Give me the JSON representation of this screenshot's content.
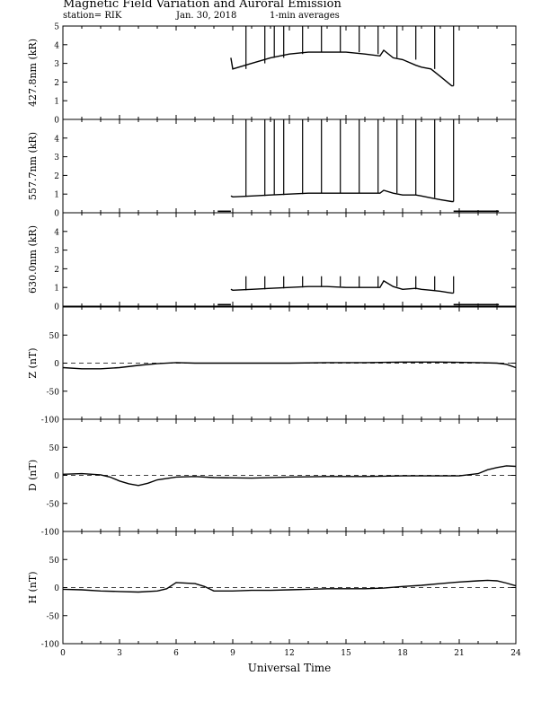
{
  "header": {
    "title": "Magnetic Field Variation and Auroral Emission",
    "station": "station= RIK",
    "date": "Jan. 30, 2018",
    "averaging": "1-min averages"
  },
  "colors": {
    "ink": "#000000",
    "background": "#ffffff"
  },
  "chart_data": [
    {
      "type": "line",
      "ylabel": "427.8nm (kR)",
      "ylim": [
        0,
        5
      ],
      "yticks": [
        0,
        1,
        2,
        3,
        4,
        5
      ],
      "xlim": [
        0,
        24
      ],
      "grid": false,
      "x": [
        8.9,
        9.0,
        10,
        11,
        12,
        13,
        14,
        15,
        16,
        16.8,
        17.0,
        17.5,
        18,
        18.7,
        19,
        19.5,
        20,
        20.6,
        20.7
      ],
      "values": [
        3.3,
        2.7,
        3.0,
        3.3,
        3.5,
        3.6,
        3.6,
        3.6,
        3.5,
        3.4,
        3.7,
        3.3,
        3.2,
        2.9,
        2.8,
        2.7,
        2.3,
        1.8,
        1.8
      ],
      "spikes": [
        {
          "x": 9.7,
          "y": 5.0
        },
        {
          "x": 10.7,
          "y": 5.0
        },
        {
          "x": 11.2,
          "y": 5.0
        },
        {
          "x": 11.7,
          "y": 5.0
        },
        {
          "x": 12.7,
          "y": 5.0
        },
        {
          "x": 13.7,
          "y": 5.0
        },
        {
          "x": 14.7,
          "y": 5.0
        },
        {
          "x": 15.7,
          "y": 5.0
        },
        {
          "x": 16.7,
          "y": 5.0
        },
        {
          "x": 17.7,
          "y": 5.0
        },
        {
          "x": 18.7,
          "y": 5.0
        },
        {
          "x": 19.7,
          "y": 5.0
        },
        {
          "x": 20.7,
          "y": 5.0
        }
      ]
    },
    {
      "type": "line",
      "ylabel": "557.7nm (kR)",
      "ylim": [
        0,
        5
      ],
      "yticks": [
        0,
        1,
        2,
        3,
        4
      ],
      "xlim": [
        0,
        24
      ],
      "grid": false,
      "x": [
        8.9,
        9.0,
        10,
        11,
        12,
        13,
        14,
        15,
        16,
        16.8,
        17.0,
        17.5,
        18,
        18.7,
        19,
        19.5,
        20,
        20.6,
        20.7
      ],
      "values": [
        0.9,
        0.85,
        0.9,
        0.95,
        1.0,
        1.05,
        1.05,
        1.05,
        1.05,
        1.05,
        1.2,
        1.05,
        0.95,
        0.95,
        0.9,
        0.8,
        0.7,
        0.6,
        0.6
      ],
      "spikes": [
        {
          "x": 9.7,
          "y": 5.0
        },
        {
          "x": 10.7,
          "y": 5.0
        },
        {
          "x": 11.2,
          "y": 5.0
        },
        {
          "x": 11.7,
          "y": 5.0
        },
        {
          "x": 12.7,
          "y": 5.0
        },
        {
          "x": 13.7,
          "y": 5.0
        },
        {
          "x": 14.7,
          "y": 5.0
        },
        {
          "x": 15.7,
          "y": 5.0
        },
        {
          "x": 16.7,
          "y": 5.0
        },
        {
          "x": 17.7,
          "y": 5.0
        },
        {
          "x": 18.7,
          "y": 5.0
        },
        {
          "x": 19.7,
          "y": 5.0
        },
        {
          "x": 20.7,
          "y": 5.0
        }
      ],
      "offset_segments": [
        [
          8.2,
          8.9,
          0.08
        ],
        [
          20.7,
          23.1,
          0.08
        ]
      ]
    },
    {
      "type": "line",
      "ylabel": "630.0nm (kR)",
      "ylim": [
        0,
        5
      ],
      "yticks": [
        0,
        1,
        2,
        3,
        4
      ],
      "xlim": [
        0,
        24
      ],
      "grid": false,
      "x": [
        8.9,
        9.0,
        10,
        11,
        12,
        13,
        14,
        15,
        16,
        16.8,
        17.0,
        17.5,
        18,
        18.7,
        19,
        19.5,
        20,
        20.6,
        20.7
      ],
      "values": [
        0.9,
        0.85,
        0.9,
        0.95,
        1.0,
        1.05,
        1.05,
        1.0,
        1.0,
        1.0,
        1.35,
        1.05,
        0.9,
        0.95,
        0.9,
        0.85,
        0.8,
        0.7,
        0.7
      ],
      "spikes": [
        {
          "x": 9.7,
          "y": 1.6
        },
        {
          "x": 10.7,
          "y": 1.6
        },
        {
          "x": 11.7,
          "y": 1.6
        },
        {
          "x": 12.7,
          "y": 1.6
        },
        {
          "x": 13.7,
          "y": 1.6
        },
        {
          "x": 14.7,
          "y": 1.6
        },
        {
          "x": 15.7,
          "y": 1.6
        },
        {
          "x": 16.7,
          "y": 1.6
        },
        {
          "x": 17.7,
          "y": 1.6
        },
        {
          "x": 18.7,
          "y": 1.6
        },
        {
          "x": 19.7,
          "y": 1.6
        },
        {
          "x": 20.7,
          "y": 1.6
        }
      ],
      "offset_segments": [
        [
          8.2,
          8.9,
          0.08
        ],
        [
          20.7,
          23.1,
          0.08
        ]
      ]
    },
    {
      "type": "line",
      "ylabel": "Z (nT)",
      "ylim": [
        -100,
        100
      ],
      "yticks": [
        -100,
        -50,
        0,
        50
      ],
      "xlim": [
        0,
        24
      ],
      "grid": false,
      "baseline": 0,
      "x": [
        0,
        1,
        2,
        3,
        4,
        5,
        6,
        7,
        8,
        9,
        10,
        12,
        14,
        16,
        18,
        20,
        22,
        23,
        23.5,
        24
      ],
      "values": [
        -8,
        -10,
        -10,
        -8,
        -4,
        -1,
        1,
        0,
        0,
        0,
        0,
        0,
        1,
        1,
        2,
        2,
        1,
        0,
        -2,
        -8
      ]
    },
    {
      "type": "line",
      "ylabel": "D (nT)",
      "ylim": [
        -100,
        100
      ],
      "yticks": [
        -100,
        -50,
        0,
        50
      ],
      "xlim": [
        0,
        24
      ],
      "grid": false,
      "baseline": 0,
      "x": [
        0,
        1,
        2,
        2.5,
        3,
        3.5,
        4,
        4.5,
        5,
        6,
        7,
        8,
        10,
        12,
        14,
        16,
        18,
        20,
        21,
        22,
        22.5,
        23,
        23.5,
        24
      ],
      "values": [
        2,
        3,
        1,
        -3,
        -10,
        -15,
        -18,
        -14,
        -8,
        -3,
        -2,
        -4,
        -5,
        -3,
        -2,
        -2,
        -1,
        -1,
        -1,
        3,
        10,
        14,
        17,
        16
      ]
    },
    {
      "type": "line",
      "ylabel": "H (nT)",
      "ylim": [
        -100,
        100
      ],
      "yticks": [
        -100,
        -50,
        0,
        50
      ],
      "xlim": [
        0,
        24
      ],
      "grid": false,
      "baseline": 0,
      "x": [
        0,
        1,
        2,
        3,
        4,
        5,
        5.5,
        6,
        7,
        7.5,
        8,
        9,
        10,
        11,
        12,
        13,
        14,
        15,
        16,
        17,
        18,
        19,
        20,
        21,
        22,
        22.5,
        23,
        23.5,
        24
      ],
      "values": [
        -3,
        -4,
        -6,
        -7,
        -8,
        -6,
        -2,
        9,
        7,
        2,
        -6,
        -6,
        -5,
        -5,
        -4,
        -3,
        -2,
        -2,
        -2,
        -1,
        2,
        4,
        7,
        10,
        12,
        13,
        12,
        8,
        3
      ],
      "xticks": [
        0,
        3,
        6,
        9,
        12,
        15,
        18,
        21,
        24
      ],
      "xlabel": "Universal Time"
    }
  ]
}
